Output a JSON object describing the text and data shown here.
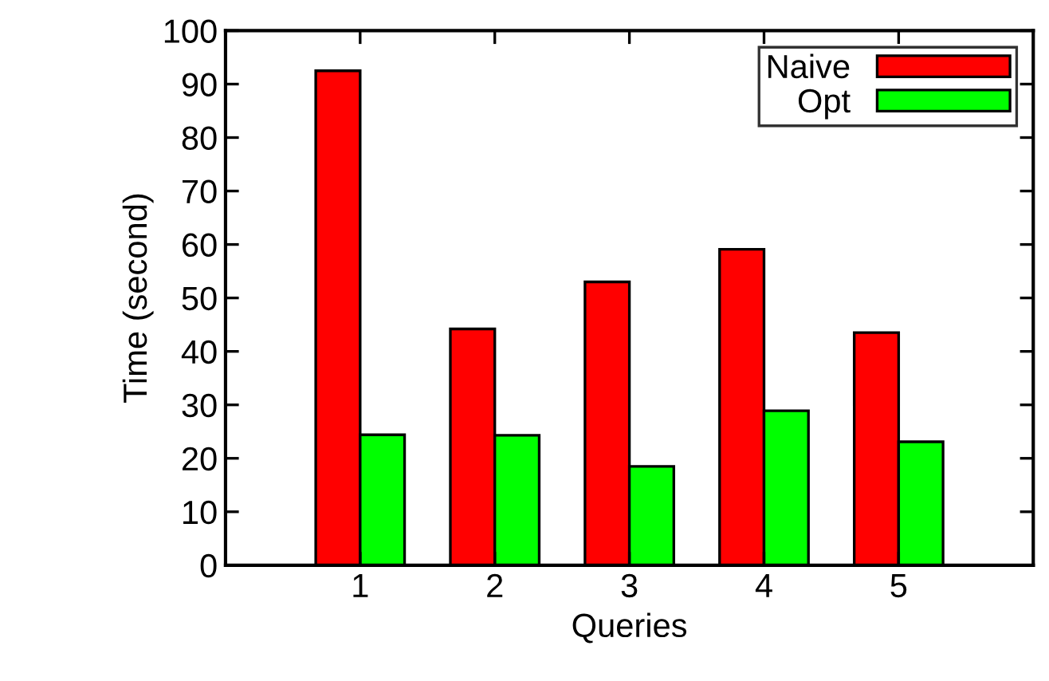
{
  "chart_data": {
    "type": "bar",
    "xlabel": "Queries",
    "ylabel": "Time (second)",
    "categories": [
      "1",
      "2",
      "3",
      "4",
      "5"
    ],
    "series": [
      {
        "name": "Naive",
        "color": "#ff0000",
        "values": [
          92.5,
          44.2,
          53.0,
          59.1,
          43.5
        ]
      },
      {
        "name": "Opt",
        "color": "#00ff00",
        "values": [
          24.4,
          24.3,
          18.5,
          28.9,
          23.1
        ]
      }
    ],
    "ylim": [
      0,
      100
    ],
    "yticks": [
      0,
      10,
      20,
      30,
      40,
      50,
      60,
      70,
      80,
      90,
      100
    ],
    "grid": false,
    "legend": "top right"
  }
}
